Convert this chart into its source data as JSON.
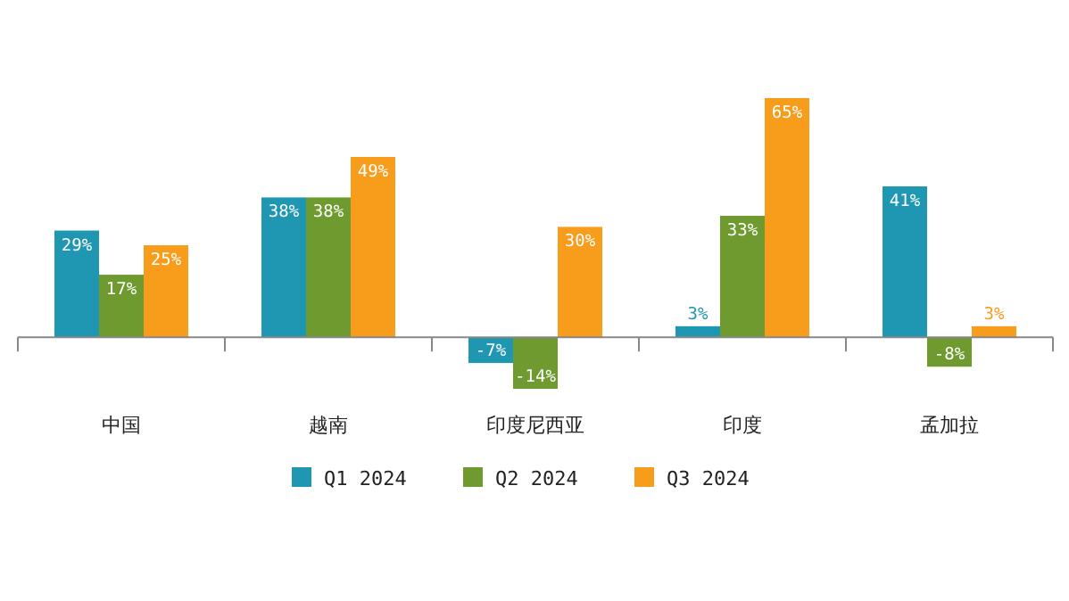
{
  "chart_data": {
    "type": "bar",
    "categories": [
      "中国",
      "越南",
      "印度尼西亚",
      "印度",
      "孟加拉"
    ],
    "series": [
      {
        "name": "Q1 2024",
        "color": "#1f97b2",
        "values": [
          29,
          38,
          -7,
          3,
          41
        ],
        "value_labels": [
          "29%",
          "38%",
          "-7%",
          "3%",
          "41%"
        ]
      },
      {
        "name": "Q2 2024",
        "color": "#6e9a30",
        "values": [
          17,
          38,
          -14,
          33,
          -8
        ],
        "value_labels": [
          "17%",
          "38%",
          "-14%",
          "33%",
          "-8%"
        ]
      },
      {
        "name": "Q3 2024",
        "color": "#f89c1c",
        "values": [
          25,
          49,
          30,
          65,
          3
        ],
        "value_labels": [
          "25%",
          "49%",
          "30%",
          "65%",
          "3%"
        ]
      }
    ],
    "legend": "bottom",
    "grid": false
  }
}
